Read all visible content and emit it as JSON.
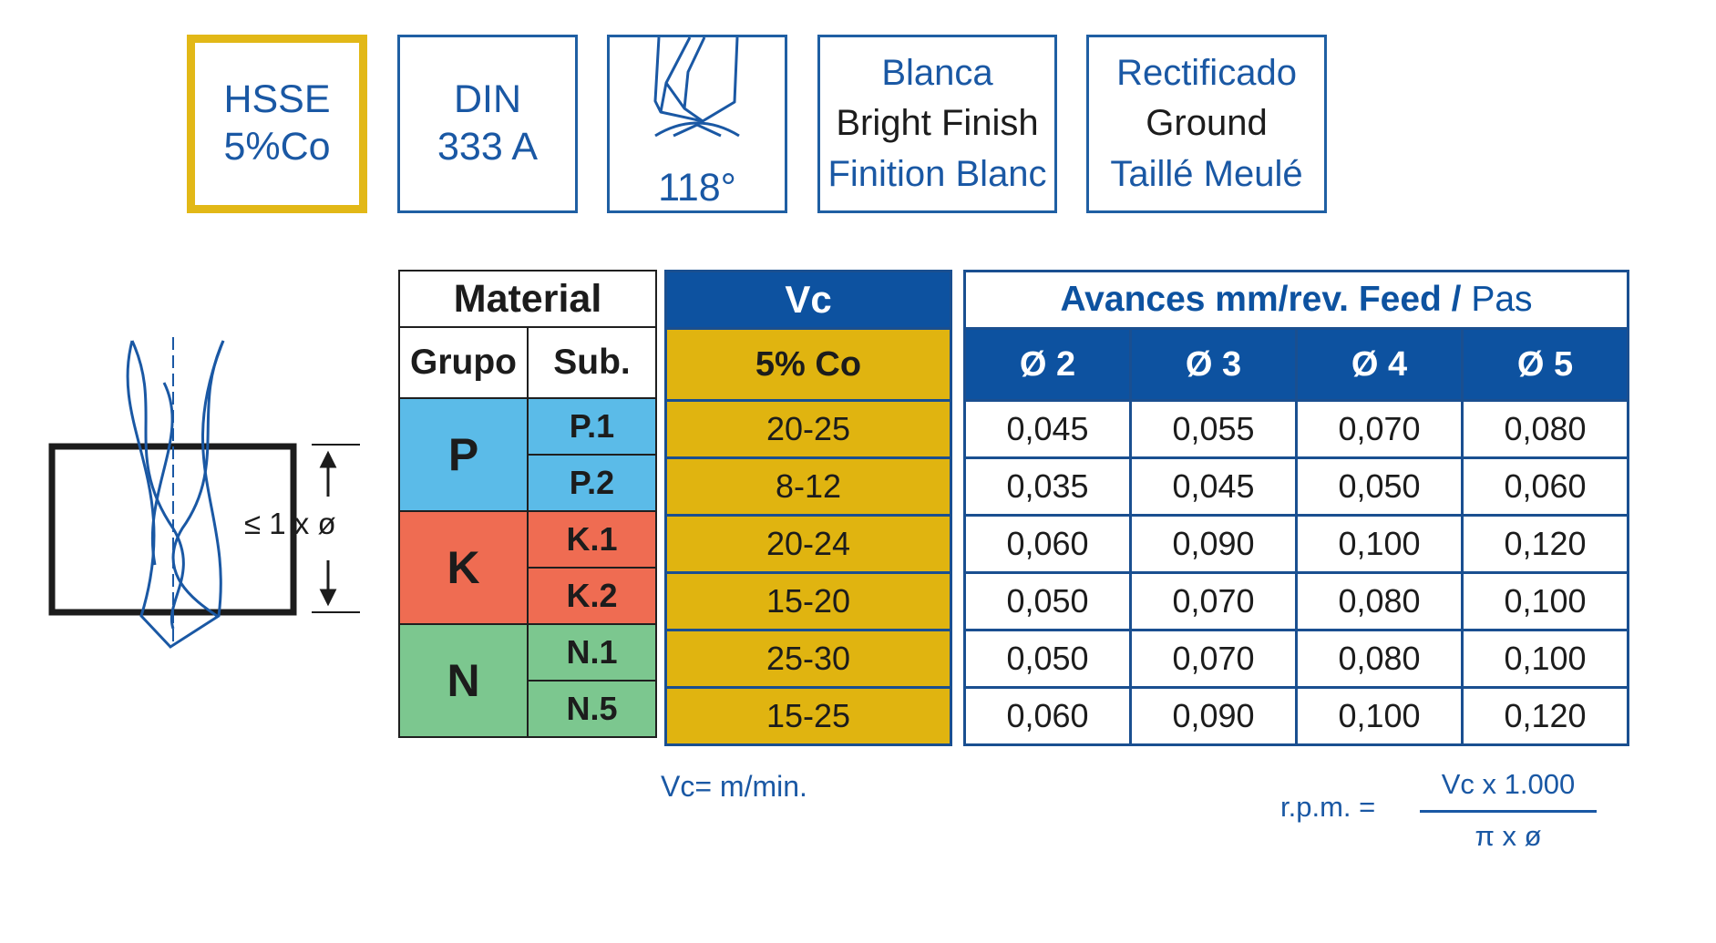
{
  "badges": {
    "hsse": {
      "line1": "HSSE",
      "line2": "5%Co"
    },
    "din": {
      "line1": "DIN",
      "line2": "333 A"
    },
    "angle": {
      "value": "118°"
    },
    "finish": {
      "line1": "Blanca",
      "line2": "Bright Finish",
      "line3": "Finition Blanc"
    },
    "ground": {
      "line1": "Rectificado",
      "line2": "Ground",
      "line3": "Taillé Meulé"
    }
  },
  "depth_label": "≤ 1 x ø",
  "table": {
    "material_header": "Material",
    "grupo_header": "Grupo",
    "sub_header": "Sub.",
    "vc_header": "Vc",
    "vc_subheader": "5% Co",
    "feed_header_main": "Avances mm/rev. Feed",
    "feed_header_sep": " / ",
    "feed_header_alt": "Pas",
    "diameters": [
      "Ø 2",
      "Ø 3",
      "Ø 4",
      "Ø 5"
    ],
    "groups": [
      {
        "group": "P",
        "rows": [
          {
            "sub": "P.1",
            "vc": "20-25",
            "feeds": [
              "0,045",
              "0,055",
              "0,070",
              "0,080"
            ]
          },
          {
            "sub": "P.2",
            "vc": "8-12",
            "feeds": [
              "0,035",
              "0,045",
              "0,050",
              "0,060"
            ]
          }
        ]
      },
      {
        "group": "K",
        "rows": [
          {
            "sub": "K.1",
            "vc": "20-24",
            "feeds": [
              "0,060",
              "0,090",
              "0,100",
              "0,120"
            ]
          },
          {
            "sub": "K.2",
            "vc": "15-20",
            "feeds": [
              "0,050",
              "0,070",
              "0,080",
              "0,100"
            ]
          }
        ]
      },
      {
        "group": "N",
        "rows": [
          {
            "sub": "N.1",
            "vc": "25-30",
            "feeds": [
              "0,050",
              "0,070",
              "0,080",
              "0,100"
            ]
          },
          {
            "sub": "N.5",
            "vc": "15-25",
            "feeds": [
              "0,060",
              "0,090",
              "0,100",
              "0,120"
            ]
          }
        ]
      }
    ]
  },
  "vc_unit": "Vc= m/min.",
  "rpm_formula": {
    "lhs": "r.p.m. =",
    "numerator": "Vc x 1.000",
    "denominator": "π x ø"
  },
  "colors": {
    "blue": "#0d52a0",
    "text_blue": "#1a58a4",
    "gold": "#e0b410",
    "hsse_border": "#e2b817",
    "group_P": "#5bbbe8",
    "group_K": "#ef6c52",
    "group_N": "#7cc78f"
  }
}
